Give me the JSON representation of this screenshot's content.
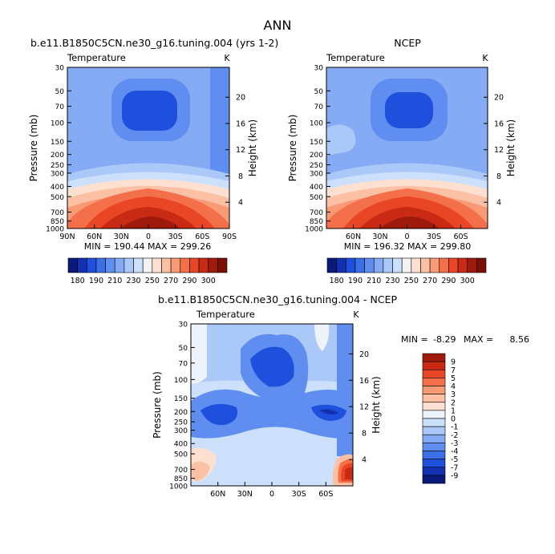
{
  "page": {
    "title": "ANN"
  },
  "colors": {
    "temp_scale": [
      "#0a1a7a",
      "#1230b0",
      "#1e4fdd",
      "#3a6fe6",
      "#5f8ef0",
      "#86abf5",
      "#aac8f8",
      "#cde0fb",
      "#f3f3f3",
      "#fde0d0",
      "#fcc0a4",
      "#f99a76",
      "#f4704b",
      "#e84625",
      "#c92a14",
      "#a01a0c",
      "#7a0f06"
    ],
    "diff_scale": [
      "#0a1a7a",
      "#1230b0",
      "#1e4fdd",
      "#3a6fe6",
      "#5f8ef0",
      "#86abf5",
      "#aac8f8",
      "#cde0fb",
      "#eef3fb",
      "#fde0d0",
      "#fcc0a4",
      "#f99a76",
      "#f4704b",
      "#e84625",
      "#c92a14",
      "#a01a0c"
    ]
  },
  "chart_data": [
    {
      "type": "heatmap",
      "title": "b.e11.B1850C5CN.ne30_g16.tuning.004 (yrs 1-2)",
      "subtitle": "Temperature",
      "units": "K",
      "ylabel": "Pressure  (mb)",
      "ylabel_right": "Height  (km)",
      "x_ticks": [
        "90N",
        "60N",
        "30N",
        "0",
        "30S",
        "60S",
        "90S"
      ],
      "y_ticks": [
        "30",
        "50",
        "70",
        "100",
        "150",
        "200",
        "250",
        "300",
        "400",
        "500",
        "700",
        "850",
        "1000"
      ],
      "y_ticks_right": [
        "20",
        "16",
        "12",
        "8",
        "4"
      ],
      "min": 190.44,
      "max": 299.26,
      "stats_text": "MIN = 190.44   MAX = 299.26",
      "colorbar_labels": [
        "180",
        "190",
        "210",
        "230",
        "250",
        "270",
        "290",
        "300"
      ]
    },
    {
      "type": "heatmap",
      "title": "NCEP",
      "subtitle": "Temperature",
      "units": "K",
      "ylabel": "Pressure  (mb)",
      "ylabel_right": "Height  (km)",
      "x_ticks": [
        "60N",
        "30N",
        "0",
        "30S",
        "60S"
      ],
      "y_ticks": [
        "30",
        "50",
        "70",
        "100",
        "150",
        "200",
        "250",
        "300",
        "400",
        "500",
        "700",
        "850",
        "1000"
      ],
      "y_ticks_right": [
        "20",
        "16",
        "12",
        "8",
        "4"
      ],
      "min": 196.32,
      "max": 299.8,
      "stats_text": "MIN = 196.32   MAX = 299.80",
      "colorbar_labels": [
        "180",
        "190",
        "210",
        "230",
        "250",
        "270",
        "290",
        "300"
      ]
    },
    {
      "type": "heatmap",
      "title": "b.e11.B1850C5CN.ne30_g16.tuning.004 - NCEP",
      "subtitle": "Temperature",
      "units": "K",
      "ylabel": "Pressure  (mb)",
      "ylabel_right": "Height  (km)",
      "x_ticks": [
        "60N",
        "30N",
        "0",
        "30S",
        "60S"
      ],
      "y_ticks": [
        "30",
        "50",
        "70",
        "100",
        "150",
        "200",
        "250",
        "300",
        "400",
        "500",
        "700",
        "850",
        "1000"
      ],
      "y_ticks_right": [
        "20",
        "16",
        "12",
        "8",
        "4"
      ],
      "min": -8.29,
      "max": 8.56,
      "min_label": "MIN =",
      "min_value": "-8.29",
      "max_label": "MAX =",
      "max_value": "8.56",
      "colorbar_labels": [
        "9",
        "7",
        "5",
        "4",
        "3",
        "2",
        "1",
        "0",
        "-1",
        "-2",
        "-3",
        "-4",
        "-5",
        "-7",
        "-9"
      ]
    }
  ]
}
